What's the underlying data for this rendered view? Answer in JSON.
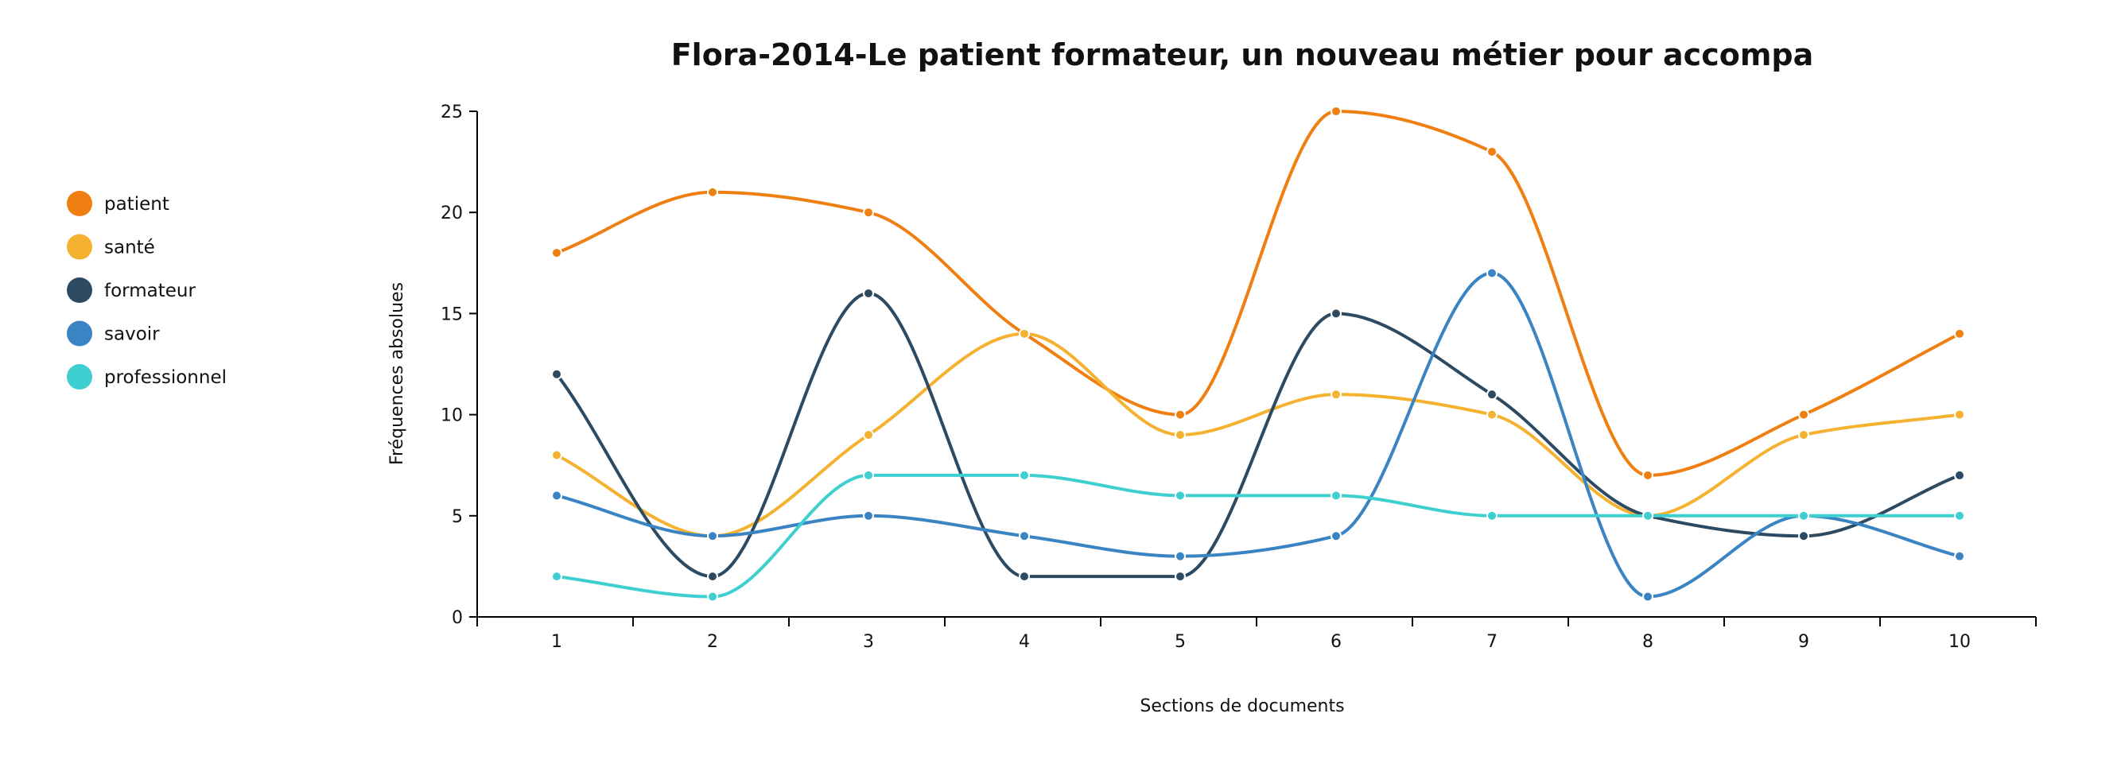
{
  "chart_data": {
    "type": "line",
    "title": "Flora-2014-Le patient formateur, un nouveau métier pour accompa",
    "xlabel": "Sections de documents",
    "ylabel": "Fréquences absolues",
    "x": [
      1,
      2,
      3,
      4,
      5,
      6,
      7,
      8,
      9,
      10
    ],
    "x_tick_labels": [
      "1",
      "2",
      "3",
      "4",
      "5",
      "6",
      "7",
      "8",
      "9",
      "10"
    ],
    "y_ticks": [
      0,
      5,
      10,
      15,
      20,
      25
    ],
    "y_tick_labels": [
      "0",
      "5",
      "10",
      "15",
      "20",
      "25"
    ],
    "ylim": [
      0,
      25
    ],
    "grid": false,
    "legend_position": "left",
    "series": [
      {
        "name": "patient",
        "color": "#f07f12",
        "values": [
          18,
          21,
          20,
          14,
          10,
          25,
          23,
          7,
          10,
          14
        ]
      },
      {
        "name": "santé",
        "color": "#f5b231",
        "values": [
          8,
          4,
          9,
          14,
          9,
          11,
          10,
          5,
          9,
          10
        ]
      },
      {
        "name": "formateur",
        "color": "#2d4a63",
        "values": [
          12,
          2,
          16,
          2,
          2,
          15,
          11,
          5,
          4,
          7
        ]
      },
      {
        "name": "savoir",
        "color": "#3a84c3",
        "values": [
          6,
          4,
          5,
          4,
          3,
          4,
          17,
          1,
          5,
          3
        ]
      },
      {
        "name": "professionnel",
        "color": "#3ecfd1",
        "values": [
          2,
          1,
          7,
          7,
          6,
          6,
          5,
          5,
          5,
          5
        ]
      }
    ]
  }
}
